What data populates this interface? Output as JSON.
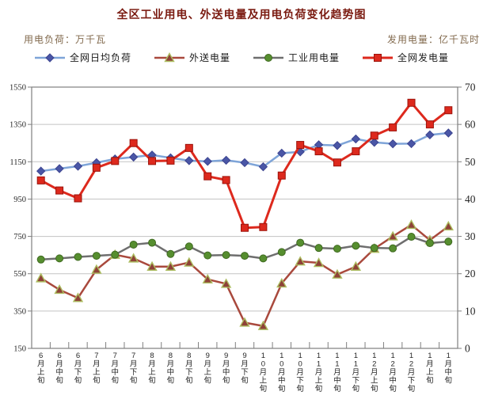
{
  "header": {
    "title": "全区工业用电、外送电量及用电负荷变化趋势图",
    "left_axis_unit": "用电负荷：万千瓦",
    "right_axis_unit": "发用电量：亿千瓦时"
  },
  "chart_data": {
    "type": "line",
    "title": "全区工业用电、外送电量及用电负荷变化趋势图",
    "xlabel": "",
    "ylabel_left": "用电负荷：万千瓦",
    "ylabel_right": "发用电量：亿千瓦时",
    "grid": true,
    "legend_position": "top",
    "categories": [
      "6月上旬",
      "6月中旬",
      "6月下旬",
      "7月上旬",
      "7月中旬",
      "7月下旬",
      "8月上旬",
      "8月中旬",
      "8月下旬",
      "9月上旬",
      "9月中旬",
      "9月下旬",
      "10月上旬",
      "10月中旬",
      "10月下旬",
      "11月上旬",
      "11月中旬",
      "11月下旬",
      "12月上旬",
      "12月中旬",
      "12月下旬",
      "1月上旬",
      "1月中旬"
    ],
    "left_axis": {
      "min": 150,
      "max": 1550,
      "step": 200,
      "ticks": [
        150,
        350,
        550,
        750,
        950,
        1150,
        1350,
        1550
      ]
    },
    "right_axis": {
      "min": 0,
      "max": 70,
      "step": 10,
      "ticks": [
        0,
        10,
        20,
        30,
        40,
        50,
        60,
        70
      ]
    },
    "series": [
      {
        "id": "daily-avg-load",
        "name": "全网日均负荷",
        "axis": "left",
        "unit": "万千瓦",
        "marker": "diamond",
        "line_color": "#7ea4d8",
        "line_width": 2.5,
        "marker_color": "#4a56a6",
        "marker_stroke": "#3c4490",
        "values": [
          1100,
          1113,
          1126,
          1145,
          1165,
          1175,
          1186,
          1171,
          1156,
          1152,
          1158,
          1145,
          1123,
          1196,
          1203,
          1241,
          1237,
          1272,
          1254,
          1246,
          1247,
          1294,
          1304
        ]
      },
      {
        "id": "outbound-power",
        "name": "外送电量",
        "axis": "right",
        "unit": "亿千瓦时",
        "marker": "triangle",
        "line_color": "#a9493d",
        "line_width": 2.5,
        "marker_color": "#8e4238",
        "marker_stroke": "#acbd60",
        "values": [
          18.8,
          15.7,
          13.5,
          21.1,
          25.1,
          24.1,
          21.9,
          21.9,
          23.0,
          18.5,
          17.3,
          6.9,
          6.0,
          17.4,
          23.3,
          22.9,
          19.8,
          21.9,
          26.7,
          30.0,
          33.1,
          29.0,
          32.7
        ]
      },
      {
        "id": "industrial-power",
        "name": "工业用电量",
        "axis": "right",
        "unit": "亿千瓦时",
        "marker": "circle",
        "line_color": "#6e6e6e",
        "line_width": 2.5,
        "marker_color": "#568e2f",
        "marker_stroke": "#3f6a20",
        "values": [
          23.8,
          24.1,
          24.5,
          24.8,
          25.1,
          27.8,
          28.3,
          25.3,
          27.3,
          24.9,
          25.0,
          24.8,
          24.1,
          25.8,
          28.3,
          26.9,
          26.7,
          27.5,
          26.9,
          26.8,
          29.9,
          28.2,
          28.6
        ]
      },
      {
        "id": "grid-generation",
        "name": "全网发电量",
        "axis": "right",
        "unit": "亿千瓦时",
        "marker": "square",
        "line_color": "#dd291d",
        "line_width": 3,
        "marker_color": "#dd291d",
        "marker_stroke": "#9c130b",
        "values": [
          45.0,
          42.3,
          40.2,
          48.4,
          50.2,
          55.0,
          50.2,
          50.3,
          53.7,
          46.1,
          45.1,
          32.3,
          32.5,
          46.3,
          54.5,
          52.8,
          49.8,
          52.8,
          57.0,
          59.2,
          65.8,
          60.0,
          63.8
        ]
      }
    ],
    "draw_order": [
      1,
      2,
      0,
      3
    ],
    "style": {
      "title_color": "#7a1a10",
      "unit_label_color": "#826a4e",
      "tick_label_color": "#262626",
      "grid_color": "#c3c3c3",
      "axis_color": "#7f7f7f",
      "background": "#ffffff"
    }
  }
}
